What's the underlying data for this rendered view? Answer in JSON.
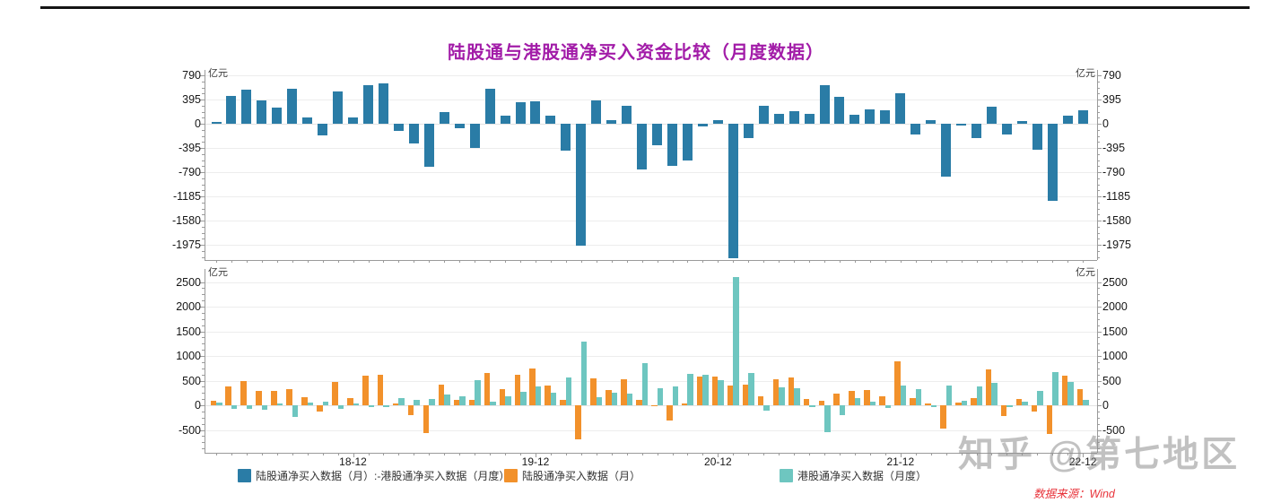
{
  "title": "陆股通与港股通净买入资金比较（月度数据）",
  "watermark": "知乎 @第七地区",
  "source": "数据来源：Wind",
  "legend": [
    {
      "label": "陆股通净买入数据（月）:-港股通净买入数据（月度）",
      "color": "#2A7CA6"
    },
    {
      "label": "陆股通净买入数据（月）",
      "color": "#F2912B"
    },
    {
      "label": "港股通净买入数据（月度）",
      "color": "#6EC6C0"
    }
  ],
  "colors": {
    "bar_diff_blue": "#2A7CA6",
    "bar_north_orange": "#F2912B",
    "bar_south_teal": "#6EC6C0",
    "title_magenta": "#A21CA8",
    "source_red": "#E8333A",
    "watermark_gray": "#8F8F8F",
    "axis_gray": "#9B9B9B",
    "grid_gray": "#EDEDED",
    "top_rule_black": "#141414"
  },
  "chart_data": [
    {
      "type": "bar",
      "panel": "top",
      "unit": "亿元",
      "ylim": [
        -2224,
        878
      ],
      "yticks": [
        790,
        395,
        0,
        -395,
        -790,
        -1185,
        -1580,
        -1975
      ],
      "grid": true,
      "x": [
        "18-03",
        "18-04",
        "18-05",
        "18-06",
        "18-07",
        "18-08",
        "18-09",
        "18-10",
        "18-11",
        "18-12",
        "19-01",
        "19-02",
        "19-03",
        "19-04",
        "19-05",
        "19-06",
        "19-07",
        "19-08",
        "19-09",
        "19-10",
        "19-11",
        "19-12",
        "20-01",
        "20-02",
        "20-03",
        "20-04",
        "20-05",
        "20-06",
        "20-07",
        "20-08",
        "20-09",
        "20-10",
        "20-11",
        "20-12",
        "21-01",
        "21-02",
        "21-03",
        "21-04",
        "21-05",
        "21-06",
        "21-07",
        "21-08",
        "21-09",
        "21-10",
        "21-11",
        "21-12",
        "22-01",
        "22-02",
        "22-03",
        "22-04",
        "22-05",
        "22-06",
        "22-07",
        "22-08",
        "22-09",
        "22-10",
        "22-11",
        "22-12"
      ],
      "series": [
        {
          "name": "陆股通净买入数据（月）:-港股通净买入数据（月度）",
          "color": "#2A7CA6",
          "values": [
            25,
            454,
            564,
            376,
            267,
            575,
            109,
            -194,
            534,
            97,
            630,
            654,
            -110,
            -315,
            -697,
            194,
            -79,
            -400,
            575,
            130,
            351,
            363,
            134,
            -442,
            -1982,
            375,
            61,
            291,
            -745,
            -345,
            -691,
            -596,
            -48,
            61,
            -2200,
            -230,
            291,
            163,
            212,
            163,
            630,
            436,
            145,
            242,
            224,
            497,
            -181,
            60,
            -867,
            -30,
            -236,
            272,
            -182,
            48,
            -424,
            -1255,
            139,
            224
          ]
        }
      ]
    },
    {
      "type": "bar",
      "panel": "bottom",
      "unit": "亿元",
      "ylim": [
        -964,
        2764
      ],
      "yticks": [
        2500,
        2000,
        1500,
        1000,
        500,
        0,
        -500
      ],
      "grid": true,
      "x": [
        "18-03",
        "18-04",
        "18-05",
        "18-06",
        "18-07",
        "18-08",
        "18-09",
        "18-10",
        "18-11",
        "18-12",
        "19-01",
        "19-02",
        "19-03",
        "19-04",
        "19-05",
        "19-06",
        "19-07",
        "19-08",
        "19-09",
        "19-10",
        "19-11",
        "19-12",
        "20-01",
        "20-02",
        "20-03",
        "20-04",
        "20-05",
        "20-06",
        "20-07",
        "20-08",
        "20-09",
        "20-10",
        "20-11",
        "20-12",
        "21-01",
        "21-02",
        "21-03",
        "21-04",
        "21-05",
        "21-06",
        "21-07",
        "21-08",
        "21-09",
        "21-10",
        "21-11",
        "21-12",
        "22-01",
        "22-02",
        "22-03",
        "22-04",
        "22-05",
        "22-06",
        "22-07",
        "22-08",
        "22-09",
        "22-10",
        "22-11",
        "22-12"
      ],
      "x_tick_labels": [
        "18-12",
        "19-12",
        "20-12",
        "21-12",
        "22-12"
      ],
      "x_tick_indices": [
        9,
        21,
        33,
        45,
        57
      ],
      "series": [
        {
          "name": "陆股通净买入数据（月）",
          "color": "#F2912B",
          "values": [
            85,
            375,
            497,
            285,
            297,
            333,
            164,
            -121,
            467,
            139,
            600,
            612,
            42,
            -200,
            -564,
            418,
            103,
            115,
            648,
            320,
            624,
            739,
            394,
            115,
            -685,
            545,
            315,
            533,
            103,
            -6,
            -315,
            40,
            576,
            576,
            400,
            424,
            182,
            527,
            557,
            133,
            85,
            236,
            297,
            315,
            176,
            891,
            152,
            30,
            -473,
            55,
            152,
            727,
            -218,
            121,
            -127,
            -576,
            606,
            327
          ]
        },
        {
          "name": "港股通净买入数据（月度）",
          "color": "#6EC6C0",
          "values": [
            60,
            -79,
            -67,
            -91,
            30,
            -242,
            55,
            73,
            -67,
            42,
            -30,
            -42,
            152,
            115,
            133,
            224,
            182,
            515,
            73,
            190,
            273,
            376,
            260,
            557,
            1297,
            170,
            254,
            242,
            848,
            339,
            376,
            636,
            624,
            515,
            2600,
            654,
            -109,
            364,
            345,
            -30,
            -545,
            -200,
            152,
            73,
            -48,
            394,
            333,
            -30,
            394,
            85,
            388,
            455,
            -36,
            73,
            297,
            679,
            467,
            103
          ]
        }
      ]
    }
  ]
}
